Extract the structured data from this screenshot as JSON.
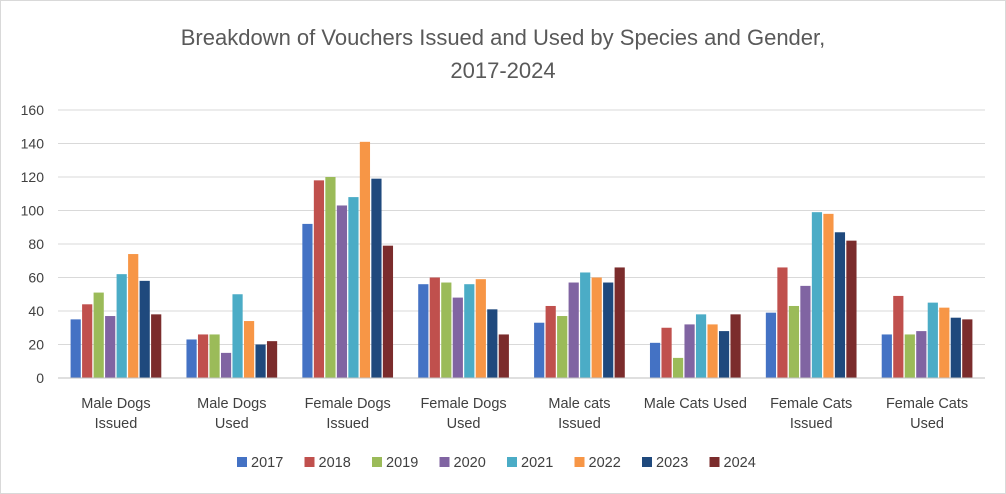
{
  "chart_data": {
    "type": "bar",
    "title_lines": [
      "Breakdown of Vouchers Issued and Used by Species and Gender,",
      "2017-2024"
    ],
    "xlabel": "",
    "ylabel": "",
    "ylim": [
      0,
      160
    ],
    "yticks": [
      0,
      20,
      40,
      60,
      80,
      100,
      120,
      140,
      160
    ],
    "grid": true,
    "legend_position": "bottom",
    "categories": [
      [
        "Male Dogs",
        "Issued"
      ],
      [
        "Male Dogs",
        "Used"
      ],
      [
        "Female Dogs",
        "Issued"
      ],
      [
        "Female Dogs",
        "Used"
      ],
      [
        "Male cats",
        "Issued"
      ],
      [
        "Male Cats Used"
      ],
      [
        "Female Cats",
        "Issued"
      ],
      [
        "Female Cats",
        "Used"
      ]
    ],
    "series": [
      {
        "name": "2017",
        "color": "#4472c4",
        "values": [
          35,
          23,
          92,
          56,
          33,
          21,
          39,
          26
        ]
      },
      {
        "name": "2018",
        "color": "#c0504d",
        "values": [
          44,
          26,
          118,
          60,
          43,
          30,
          66,
          49
        ]
      },
      {
        "name": "2019",
        "color": "#9bbb59",
        "values": [
          51,
          26,
          120,
          57,
          37,
          12,
          43,
          26
        ]
      },
      {
        "name": "2020",
        "color": "#8064a2",
        "values": [
          37,
          15,
          103,
          48,
          57,
          32,
          55,
          28
        ]
      },
      {
        "name": "2021",
        "color": "#4bacc6",
        "values": [
          62,
          50,
          108,
          56,
          63,
          38,
          99,
          45
        ]
      },
      {
        "name": "2022",
        "color": "#f79646",
        "values": [
          74,
          34,
          141,
          59,
          60,
          32,
          98,
          42
        ]
      },
      {
        "name": "2023",
        "color": "#1f497d",
        "values": [
          58,
          20,
          119,
          41,
          57,
          28,
          87,
          36
        ]
      },
      {
        "name": "2024",
        "color": "#7b2c2c",
        "values": [
          38,
          22,
          79,
          26,
          66,
          38,
          82,
          35
        ]
      }
    ]
  }
}
